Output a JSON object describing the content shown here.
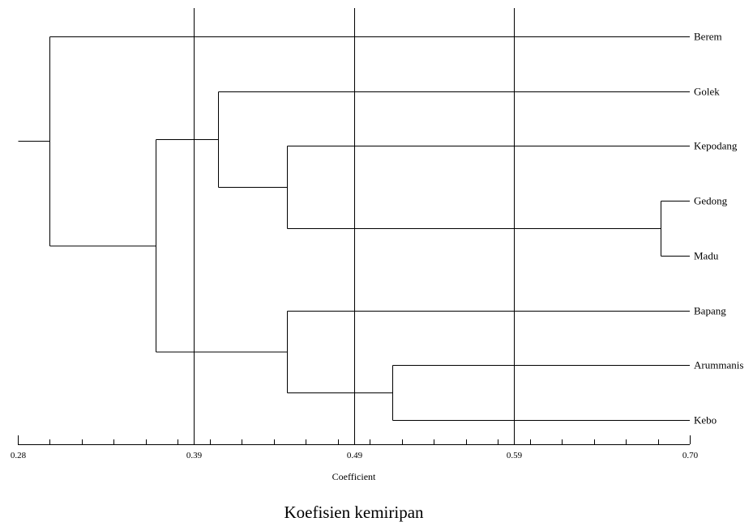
{
  "axis": {
    "label": "Coefficient",
    "min": 0.28,
    "max": 0.7,
    "major_ticks": [
      {
        "value": 0.28,
        "label": "0.28"
      },
      {
        "value": 0.39,
        "label": "0.39"
      },
      {
        "value": 0.49,
        "label": "0.49"
      },
      {
        "value": 0.59,
        "label": "0.59"
      },
      {
        "value": 0.7,
        "label": "0.70"
      }
    ],
    "minor_tick_step": 0.02
  },
  "reference_lines": [
    0.39,
    0.49,
    0.59
  ],
  "caption": "Koefisien kemiripan",
  "leaves": [
    "Berem",
    "Golek",
    "Kepodang",
    "Gedong",
    "Madu",
    "Bapang",
    "Arummanis",
    "Kebo"
  ],
  "merges": [
    {
      "id": "m1",
      "members": [
        "Gedong",
        "Madu"
      ],
      "similarity": 0.682
    },
    {
      "id": "m2",
      "members": [
        "Arummanis",
        "Kebo"
      ],
      "similarity": 0.514
    },
    {
      "id": "m3",
      "members": [
        "Kepodang",
        "m1"
      ],
      "similarity": 0.448
    },
    {
      "id": "m4",
      "members": [
        "Bapang",
        "m2"
      ],
      "similarity": 0.448
    },
    {
      "id": "m5",
      "members": [
        "Golek",
        "m3"
      ],
      "similarity": 0.405
    },
    {
      "id": "m6",
      "members": [
        "m5",
        "m4"
      ],
      "similarity": 0.366
    },
    {
      "id": "m7",
      "members": [
        "Berem",
        "m6"
      ],
      "similarity": 0.3
    }
  ],
  "root_similarity": 0.28
}
